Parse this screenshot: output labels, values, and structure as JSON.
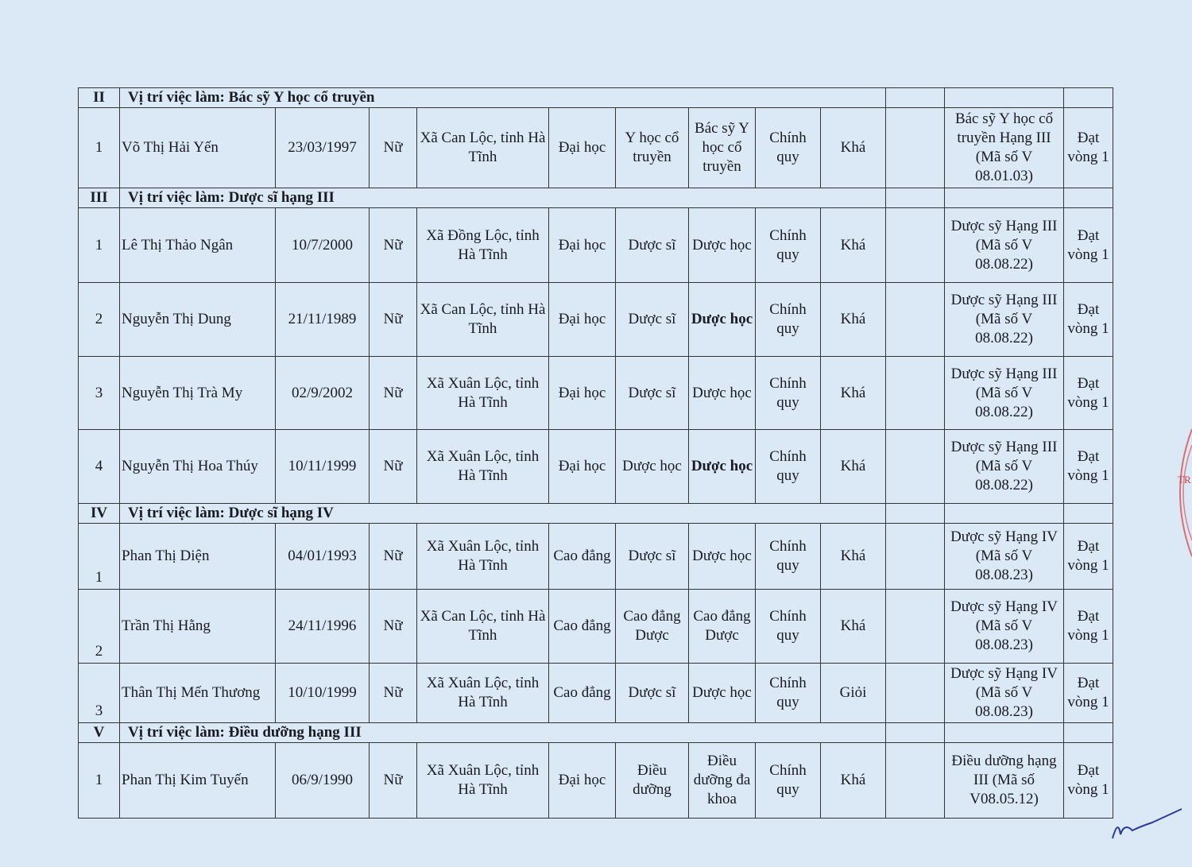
{
  "sections": [
    {
      "roman": "II",
      "title": "Vị trí việc làm: Bác sỹ Y học cổ truyền",
      "rows": [
        {
          "stt": "1",
          "name": "Võ Thị Hải Yến",
          "dob": "23/03/1997",
          "gender": "Nữ",
          "address": "Xã Can Lộc, tỉnh Hà Tĩnh",
          "degree": "Đại học",
          "major": "Y học cổ truyền",
          "specialization": "Bác sỹ Y học cổ truyền",
          "training_form": "Chính quy",
          "grade": "Khá",
          "note": "",
          "position": "Bác sỹ Y học cổ truyền Hạng III (Mã số V 08.01.03)",
          "result": "Đạt vòng 1",
          "spec_bold": false
        }
      ]
    },
    {
      "roman": "III",
      "title": "Vị trí việc làm: Dược sĩ hạng III",
      "rows": [
        {
          "stt": "1",
          "name": "Lê Thị Thảo Ngân",
          "dob": "10/7/2000",
          "gender": "Nữ",
          "address": "Xã Đồng Lộc, tỉnh Hà Tĩnh",
          "degree": "Đại học",
          "major": "Dược sĩ",
          "specialization": "Dược học",
          "training_form": "Chính quy",
          "grade": "Khá",
          "note": "",
          "position": "Dược sỹ Hạng III (Mã số V 08.08.22)",
          "result": "Đạt vòng 1",
          "spec_bold": false
        },
        {
          "stt": "2",
          "name": "Nguyễn Thị Dung",
          "dob": "21/11/1989",
          "gender": "Nữ",
          "address": "Xã Can Lộc, tỉnh Hà Tĩnh",
          "degree": "Đại học",
          "major": "Dược sĩ",
          "specialization": "Dược học",
          "training_form": "Chính quy",
          "grade": "Khá",
          "note": "",
          "position": "Dược sỹ Hạng III (Mã số V 08.08.22)",
          "result": "Đạt vòng 1",
          "spec_bold": true
        },
        {
          "stt": "3",
          "name": "Nguyễn Thị Trà My",
          "dob": "02/9/2002",
          "gender": "Nữ",
          "address": "Xã Xuân Lộc, tỉnh Hà Tĩnh",
          "degree": "Đại học",
          "major": "Dược sĩ",
          "specialization": "Dược học",
          "training_form": "Chính quy",
          "grade": "Khá",
          "note": "",
          "position": "Dược sỹ Hạng III (Mã số V 08.08.22)",
          "result": "Đạt vòng 1",
          "spec_bold": false
        },
        {
          "stt": "4",
          "name": "Nguyễn Thị Hoa Thúy",
          "dob": "10/11/1999",
          "gender": "Nữ",
          "address": "Xã Xuân Lộc, tỉnh Hà Tĩnh",
          "degree": "Đại học",
          "major": "Dược học",
          "specialization": "Dược học",
          "training_form": "Chính quy",
          "grade": "Khá",
          "note": "",
          "position": "Dược sỹ Hạng III (Mã số V 08.08.22)",
          "result": "Đạt vòng 1",
          "spec_bold": true
        }
      ]
    },
    {
      "roman": "IV",
      "title": "Vị trí việc làm: Dược sĩ hạng IV",
      "rows": [
        {
          "stt": "1",
          "name": "Phan Thị Diện",
          "dob": "04/01/1993",
          "gender": "Nữ",
          "address": "Xã Xuân Lộc, tỉnh Hà Tĩnh",
          "degree": "Cao đẳng",
          "major": "Dược sĩ",
          "specialization": "Dược học",
          "training_form": "Chính quy",
          "grade": "Khá",
          "note": "",
          "position": "Dược sỹ Hạng IV (Mã số V 08.08.23)",
          "result": "Đạt vòng 1",
          "spec_bold": false
        },
        {
          "stt": "2",
          "name": "Trần Thị Hằng",
          "dob": "24/11/1996",
          "gender": "Nữ",
          "address": "Xã Can Lộc, tỉnh Hà Tĩnh",
          "degree": "Cao đẳng",
          "major": "Cao đẳng Dược",
          "specialization": "Cao đẳng Dược",
          "training_form": "Chính quy",
          "grade": "Khá",
          "note": "",
          "position": "Dược sỹ Hạng IV (Mã số V 08.08.23)",
          "result": "Đạt vòng 1",
          "spec_bold": false
        },
        {
          "stt": "3",
          "name": "Thân Thị Mến Thương",
          "dob": "10/10/1999",
          "gender": "Nữ",
          "address": "Xã Xuân Lộc, tỉnh Hà Tĩnh",
          "degree": "Cao đẳng",
          "major": "Dược sĩ",
          "specialization": "Dược học",
          "training_form": "Chính quy",
          "grade": "Giỏi",
          "note": "",
          "position": "Dược sỹ Hạng IV (Mã số V 08.08.23)",
          "result": "Đạt vòng 1",
          "spec_bold": false
        }
      ]
    },
    {
      "roman": "V",
      "title": "Vị trí việc làm: Điều dưỡng hạng III",
      "rows": [
        {
          "stt": "1",
          "name": "Phan Thị Kim Tuyến",
          "dob": "06/9/1990",
          "gender": "Nữ",
          "address": "Xã Xuân Lộc, tỉnh Hà Tĩnh",
          "degree": "Đại học",
          "major": "Điều dưỡng",
          "specialization": "Điều dưỡng đa khoa",
          "training_form": "Chính quy",
          "grade": "Khá",
          "note": "",
          "position": "Điều dưỡng hạng III (Mã số V08.05.12)",
          "result": "Đạt vòng 1",
          "spec_bold": false
        }
      ]
    }
  ],
  "colors": {
    "paper": "#dbe9f6",
    "ink": "#1a1a22",
    "stamp": "#d83a3a",
    "signature": "#2a3a9a"
  },
  "stamp_text": "TR"
}
